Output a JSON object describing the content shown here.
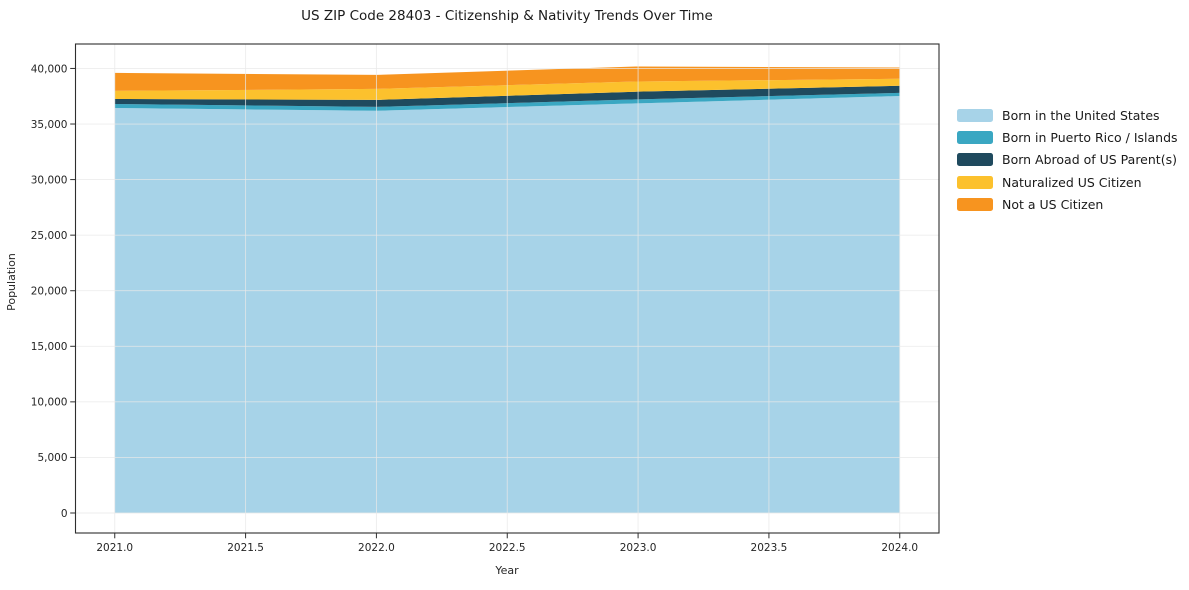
{
  "chart_data": {
    "type": "area",
    "stacked": true,
    "title": "US ZIP Code 28403 - Citizenship & Nativity Trends Over Time",
    "xlabel": "Year",
    "ylabel": "Population",
    "x": [
      2021,
      2022,
      2023,
      2024
    ],
    "series": [
      {
        "name": "Born in the United States",
        "color": "#a7d3e8",
        "values": [
          36440,
          36190,
          36860,
          37520
        ]
      },
      {
        "name": "Born in Puerto Rico / Islands",
        "color": "#3aa7c2",
        "values": [
          360,
          350,
          360,
          280
        ]
      },
      {
        "name": "Born Abroad of US Parent(s)",
        "color": "#1f4a5e",
        "values": [
          450,
          630,
          690,
          640
        ]
      },
      {
        "name": "Naturalized US Citizen",
        "color": "#fcc12d",
        "values": [
          730,
          990,
          920,
          630
        ]
      },
      {
        "name": "Not a US Citizen",
        "color": "#f7941f",
        "values": [
          1620,
          1260,
          1350,
          1010
        ]
      }
    ],
    "xlim": [
      2020.85,
      2024.15
    ],
    "ylim": [
      -1800,
      42200
    ],
    "x_ticks": {
      "values": [
        2021.0,
        2021.5,
        2022.0,
        2022.5,
        2023.0,
        2023.5,
        2024.0
      ],
      "labels": [
        "2021.0",
        "2021.5",
        "2022.0",
        "2022.5",
        "2023.0",
        "2023.5",
        "2024.0"
      ]
    },
    "y_ticks": {
      "values": [
        0,
        5000,
        10000,
        15000,
        20000,
        25000,
        30000,
        35000,
        40000
      ],
      "labels": [
        "0",
        "5,000",
        "10,000",
        "15,000",
        "20,000",
        "25,000",
        "30,000",
        "35,000",
        "40,000"
      ]
    },
    "grid": true,
    "legend_position": "right",
    "colors": {
      "spine": "#2e2e2e",
      "grid": "#e8e8e8",
      "tick_text": "#252525",
      "background": "#ffffff"
    }
  }
}
